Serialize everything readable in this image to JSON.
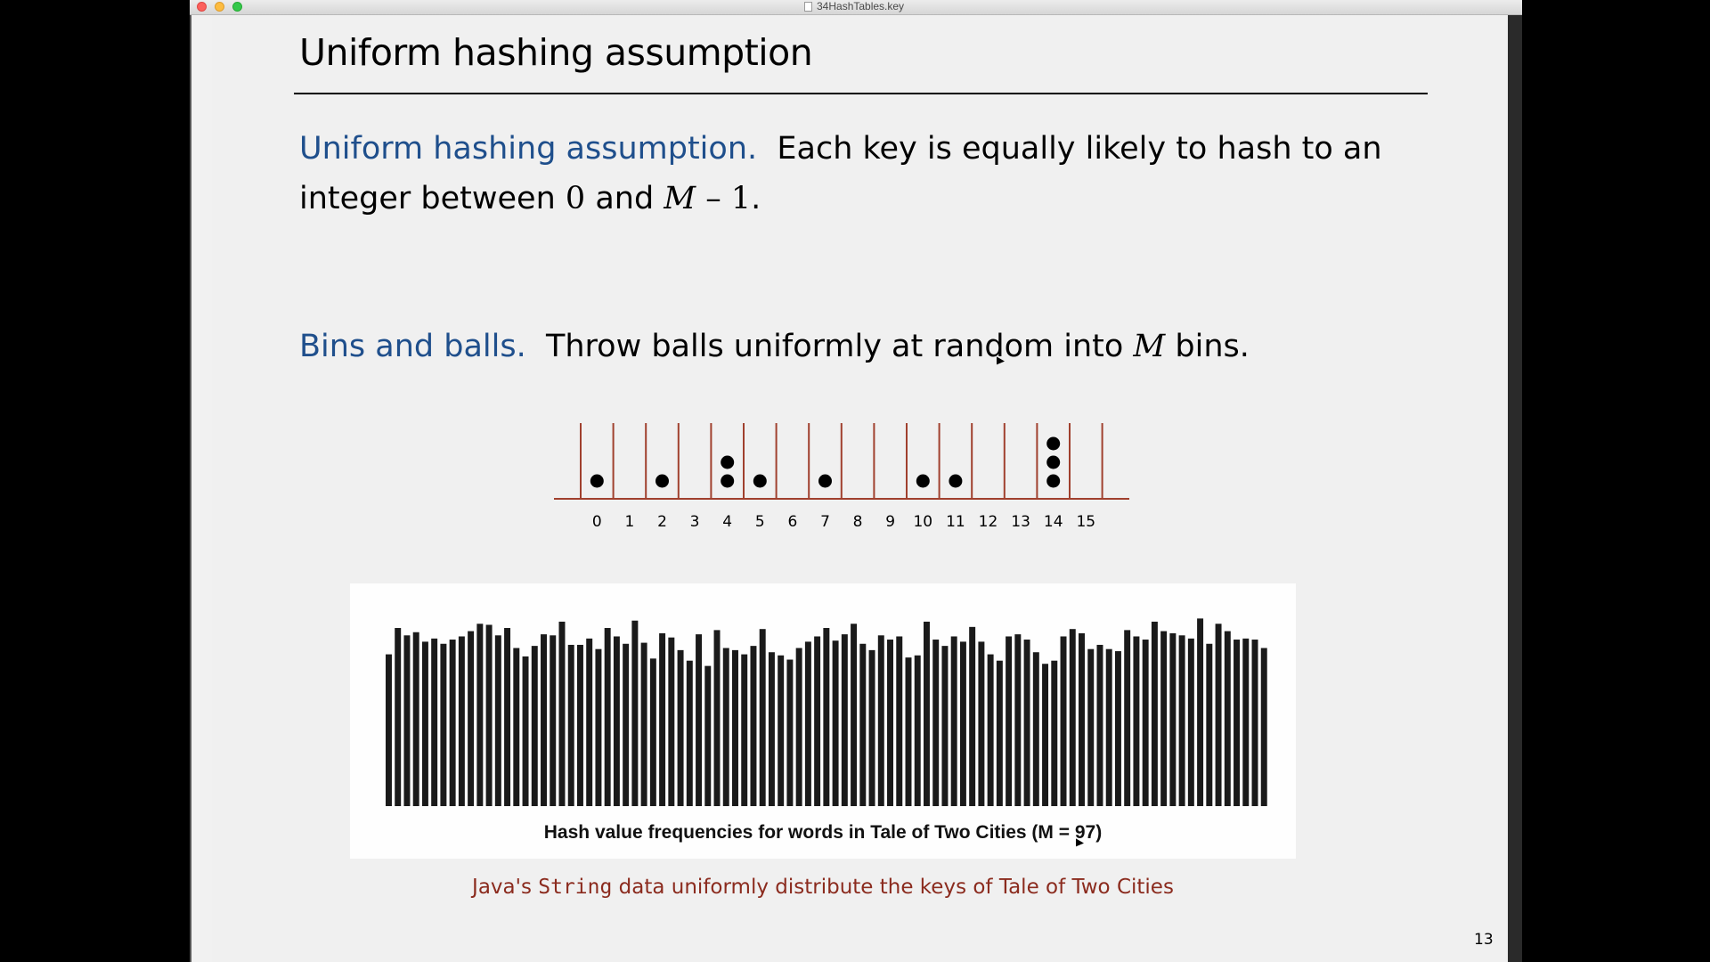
{
  "window": {
    "title": "34HashTables.key"
  },
  "slide": {
    "title": "Uniform hashing assumption",
    "para1": {
      "term": "Uniform hashing assumption.",
      "text_a": "  Each key is equally likely to hash to an",
      "text_b": "integer between ",
      "zero": "0",
      "and": " and ",
      "M": "M",
      "minus_one": " – 1",
      "end": "."
    },
    "para2": {
      "term": "Bins and balls.",
      "text_a": "  Throw balls uniformly at random into ",
      "M": "M",
      "text_b": " bins."
    },
    "bins": {
      "labels": [
        "0",
        "1",
        "2",
        "3",
        "4",
        "5",
        "6",
        "7",
        "8",
        "9",
        "10",
        "11",
        "12",
        "13",
        "14",
        "15"
      ],
      "ball_counts": [
        1,
        0,
        1,
        0,
        2,
        1,
        0,
        1,
        0,
        0,
        1,
        1,
        0,
        0,
        3,
        0
      ],
      "line_color": "#a0402e",
      "ball_color": "#000000"
    },
    "chart_caption": "Hash value frequencies for words in Tale of Two Cities (M = 97)",
    "footer": {
      "pre": "Java's ",
      "code": "String",
      "post": " data uniformly distribute the keys of Tale of Two Cities"
    },
    "slide_number": "13"
  },
  "chart_data": {
    "type": "bar",
    "title": "Hash value frequencies for words in Tale of Two Cities (M = 97)",
    "xlabel": "",
    "ylabel": "",
    "bar_color": "#1a1a1a",
    "values": [
      144,
      169,
      162,
      165,
      156,
      159,
      154,
      158,
      161,
      166,
      173,
      172,
      162,
      169,
      150,
      142,
      152,
      163,
      162,
      175,
      153,
      153,
      159,
      149,
      169,
      161,
      154,
      176,
      155,
      140,
      164,
      160,
      148,
      138,
      163,
      133,
      167,
      150,
      148,
      144,
      152,
      168,
      146,
      143,
      139,
      150,
      156,
      161,
      169,
      157,
      163,
      173,
      154,
      148,
      162,
      158,
      161,
      141,
      143,
      175,
      158,
      152,
      161,
      156,
      170,
      156,
      144,
      138,
      161,
      163,
      158,
      146,
      135,
      138,
      161,
      168,
      164,
      149,
      153,
      149,
      147,
      167,
      161,
      158,
      175,
      166,
      164,
      162,
      159,
      178,
      154,
      173,
      166,
      158,
      159,
      158,
      150
    ]
  }
}
